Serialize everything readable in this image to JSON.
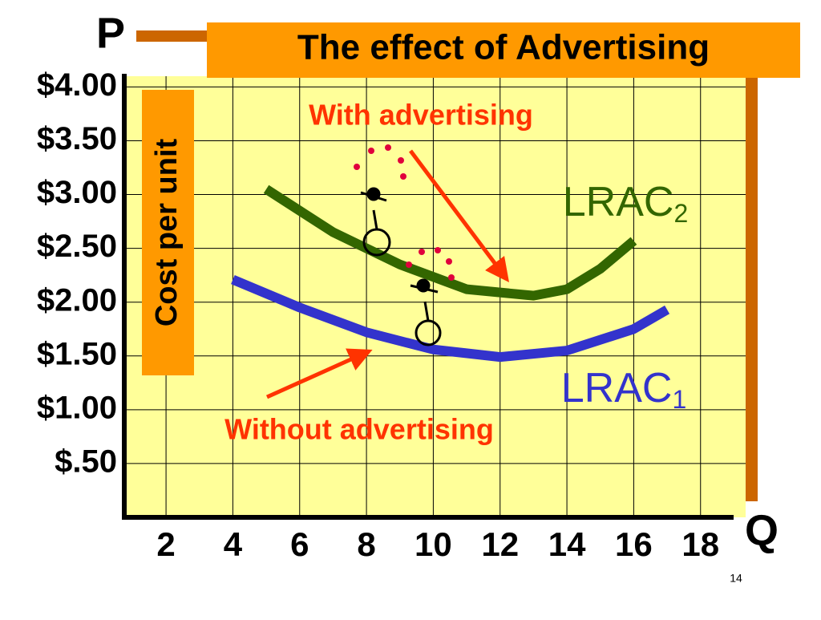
{
  "chart_data": {
    "type": "line",
    "title": "The effect of Advertising",
    "y_axis_letter": "P",
    "x_axis_letter": "Q",
    "ylabel": "Cost per unit",
    "xlim": [
      0.75,
      19.35
    ],
    "ylim": [
      0,
      4.1
    ],
    "xticks": [
      2,
      4,
      6,
      8,
      10,
      12,
      14,
      16,
      18
    ],
    "yticks": [
      {
        "value": 0.5,
        "label": "$.50"
      },
      {
        "value": 1,
        "label": "$1.00"
      },
      {
        "value": 1.5,
        "label": "$1.50"
      },
      {
        "value": 2,
        "label": "$2.00"
      },
      {
        "value": 2.5,
        "label": "$2.50"
      },
      {
        "value": 3,
        "label": "$3.00"
      },
      {
        "value": 3.5,
        "label": "$3.50"
      },
      {
        "value": 4,
        "label": "$4.00"
      }
    ],
    "grid": true,
    "series": [
      {
        "label_text": "LRAC",
        "label_sub": "2",
        "color": "#336600",
        "x": [
          5,
          7,
          9,
          11,
          13,
          14,
          15,
          16
        ],
        "values": [
          3.05,
          2.65,
          2.35,
          2.12,
          2.06,
          2.12,
          2.31,
          2.57
        ]
      },
      {
        "label_text": "LRAC",
        "label_sub": "1",
        "color": "#3333cc",
        "x": [
          4,
          6,
          8,
          10,
          12,
          14,
          16,
          17
        ],
        "values": [
          2.21,
          1.95,
          1.72,
          1.56,
          1.49,
          1.55,
          1.75,
          1.93
        ]
      }
    ],
    "annotations": [
      "With advertising",
      "Without advertising"
    ],
    "slide_number": "14"
  }
}
